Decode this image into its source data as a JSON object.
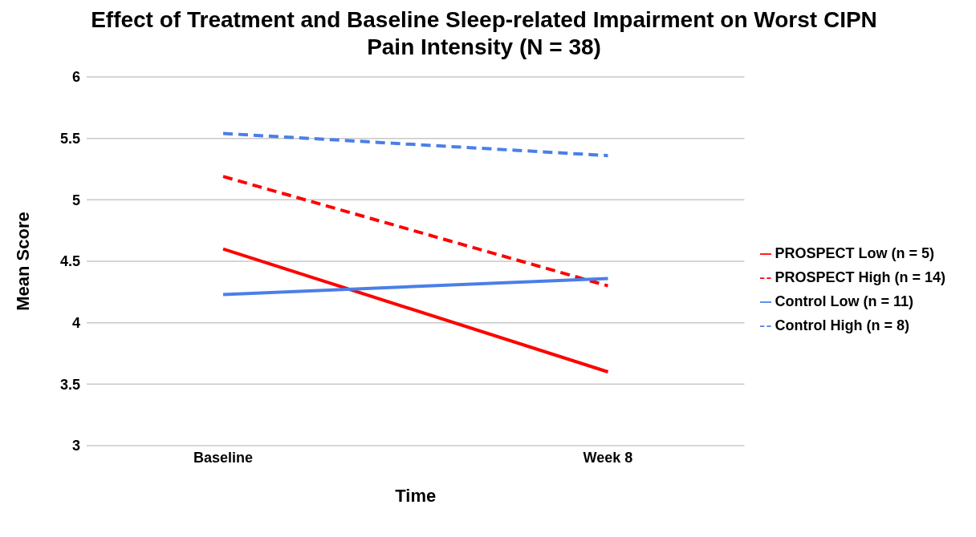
{
  "chart_data": {
    "type": "line",
    "title": "Effect of Treatment and Baseline Sleep-related Impairment on Worst CIPN Pain Intensity (N = 38)",
    "xlabel": "Time",
    "ylabel": "Mean Score",
    "categories": [
      "Baseline",
      "Week 8"
    ],
    "series": [
      {
        "name": "PROSPECT Low (n = 5)",
        "color": "#ff0000",
        "line_style": "solid",
        "values": [
          4.6,
          3.6
        ]
      },
      {
        "name": "PROSPECT High (n = 14)",
        "color": "#ff0000",
        "line_style": "dashed",
        "values": [
          5.19,
          4.3
        ]
      },
      {
        "name": "Control Low (n = 11)",
        "color": "#4a7fe8",
        "line_style": "solid",
        "values": [
          4.23,
          4.36
        ]
      },
      {
        "name": "Control High (n = 8)",
        "color": "#4a7fe8",
        "line_style": "dashed",
        "values": [
          5.54,
          5.36
        ]
      }
    ],
    "ylim": [
      3,
      6
    ],
    "yticks": [
      3,
      3.5,
      4,
      4.5,
      5,
      5.5,
      6
    ],
    "grid": "y",
    "legend": "right",
    "marker": "none"
  }
}
